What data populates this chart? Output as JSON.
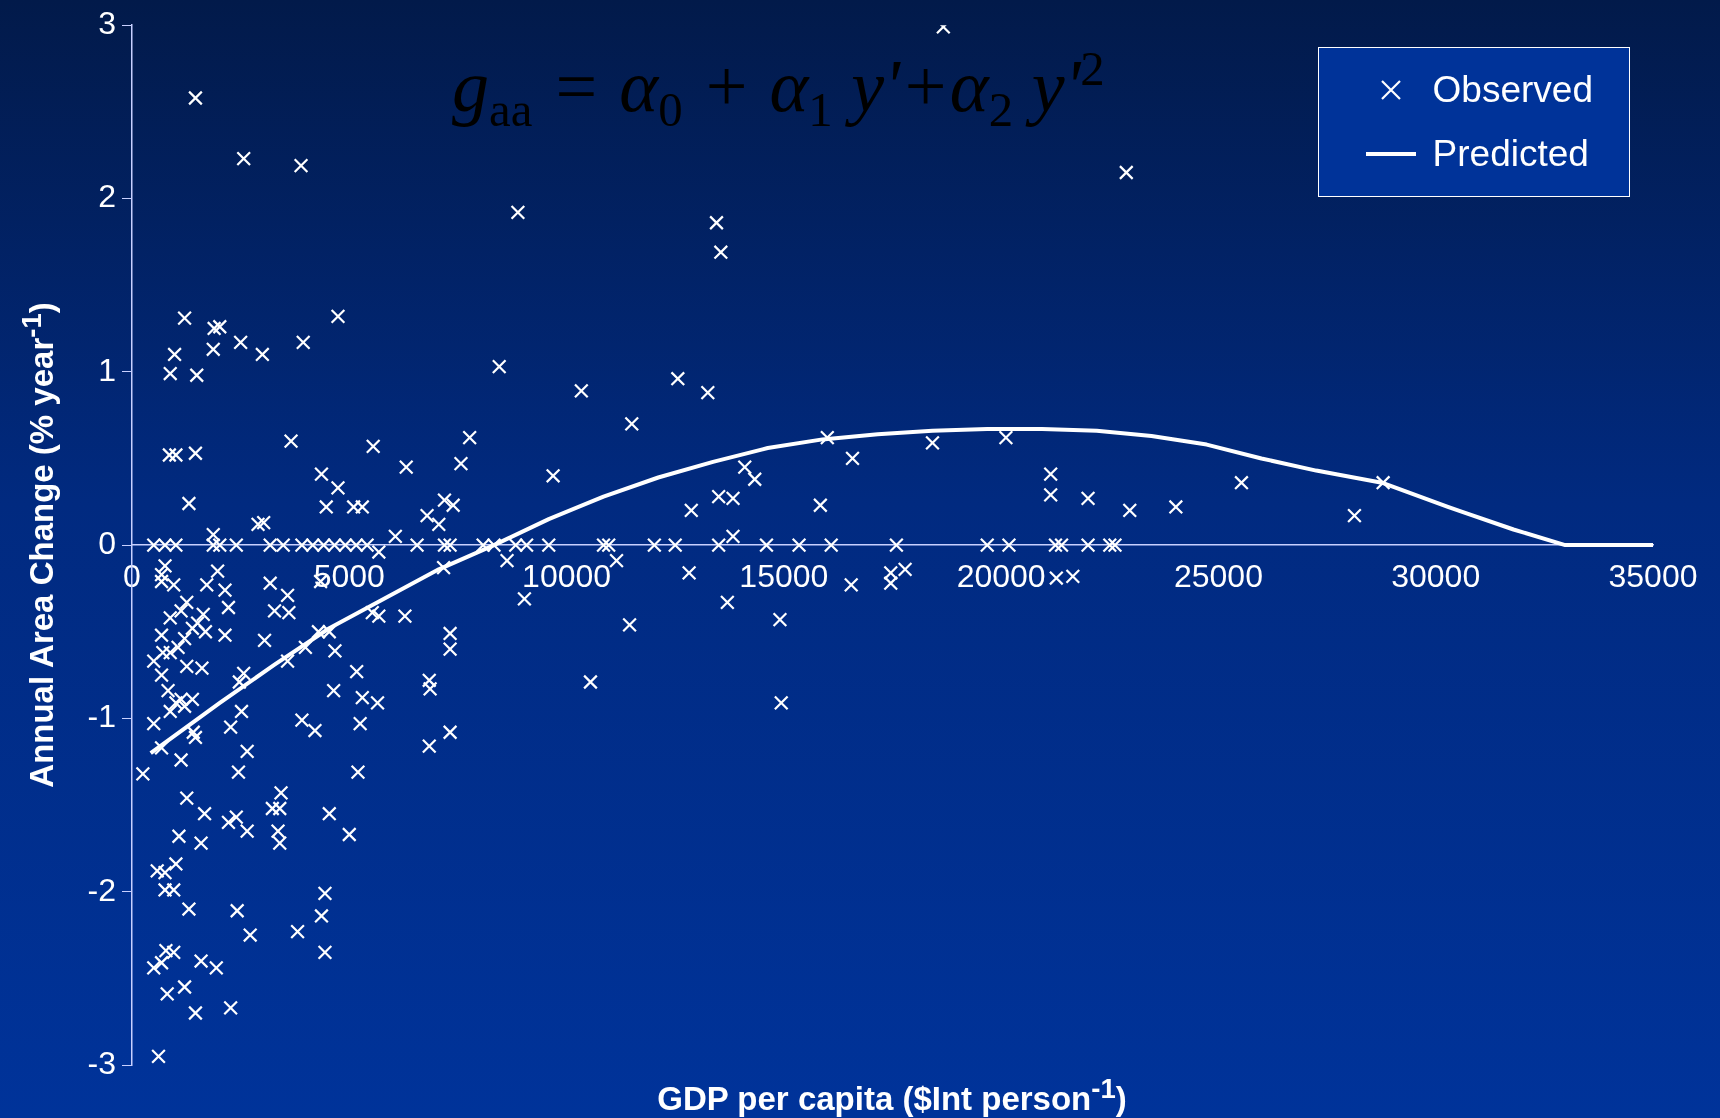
{
  "chart_data": {
    "type": "scatter",
    "xlabel": "GDP per capita ($Int person$^{-1}$)",
    "ylabel": "Annual Area Change (% year$^{-1}$)",
    "annotations": [
      "g$_{aa}$ = α$_{0}$ + α$_{1}$ y'+α$_{2}$ y'$^{2}$"
    ],
    "xlim": [
      0,
      35000
    ],
    "xticks": [
      0,
      5000,
      10000,
      15000,
      20000,
      25000,
      30000,
      35000
    ],
    "ylim": [
      -3,
      3
    ],
    "yticks": [
      -3,
      -2,
      -1,
      0,
      1,
      2,
      3
    ],
    "legend": "top right",
    "series": [
      {
        "name": "Observed",
        "type": "scatter",
        "marker": "cross",
        "color": "#ffffff",
        "x": [
          18670,
          1460,
          2570,
          3890,
          22880,
          8880,
          13450,
          13550,
          1210,
          4740,
          1890,
          2020,
          1870,
          2500,
          980,
          3000,
          3940,
          880,
          1490,
          8450,
          10340,
          12560,
          13250,
          11500,
          860,
          1010,
          1460,
          3660,
          5550,
          7770,
          16000,
          18420,
          20110,
          6310,
          4360,
          7570,
          9690,
          14100,
          14330,
          16580,
          21140,
          21140,
          22000,
          22960,
          24020,
          25530,
          28130,
          28790,
          15840,
          1310,
          2900,
          3030,
          4740,
          4470,
          5100,
          5300,
          6790,
          7190,
          7390,
          7060,
          12870,
          13500,
          13830,
          13830,
          1870,
          6060,
          500,
          760,
          1010,
          1870,
          2020,
          2400,
          3180,
          3480,
          3910,
          4160,
          4410,
          4660,
          4910,
          5160,
          5410,
          6560,
          7190,
          7320,
          8080,
          8330,
          8830,
          9080,
          9590,
          10850,
          10970,
          12020,
          12500,
          13500,
          14600,
          15350,
          16090,
          17590,
          19680,
          20180,
          21250,
          21390,
          22000,
          22500,
          22620,
          680,
          760,
          680,
          960,
          1720,
          1970,
          2140,
          3180,
          3580,
          3280,
          3610,
          4340,
          5680,
          8630,
          7170,
          11150,
          12820,
          13700,
          9030,
          17460,
          17460,
          17790,
          21270,
          21650,
          16550,
          14910,
          11450,
          10550,
          14940,
          680,
          880,
          1130,
          1260,
          500,
          710,
          880,
          1060,
          1210,
          1390,
          1510,
          1690,
          1640,
          2140,
          2220,
          1610,
          1260,
          680,
          830,
          1010,
          1130,
          1210,
          880,
          500,
          1390,
          1410,
          1460,
          250,
          680,
          1130,
          2470,
          3050,
          2570,
          3580,
          3990,
          4290,
          4540,
          4670,
          5170,
          5680,
          5530,
          6280,
          7320,
          7320,
          6840,
          6860,
          4640,
          5300,
          5650,
          3910,
          4210,
          2270,
          2520,
          5250,
          7320,
          6840,
          2650,
          2450,
          5200,
          1260,
          3430,
          1670,
          3400,
          3230,
          4540,
          2220,
          2400,
          1080,
          3360,
          3400,
          1590,
          5000,
          2650,
          1010,
          580,
          760,
          960,
          760,
          1310,
          2420,
          2720,
          3810,
          4440,
          4360,
          4440,
          780,
          960,
          500,
          680,
          1940,
          1590,
          1210,
          810,
          1460,
          2270,
          610
        ],
        "values": [
          2.99,
          2.58,
          2.23,
          2.19,
          2.15,
          1.92,
          1.86,
          1.69,
          1.31,
          1.32,
          1.25,
          1.26,
          1.13,
          1.17,
          1.1,
          1.1,
          1.17,
          0.99,
          0.98,
          1.03,
          0.89,
          0.96,
          0.88,
          0.7,
          0.52,
          0.52,
          0.53,
          0.6,
          0.57,
          0.62,
          0.62,
          0.59,
          0.62,
          0.45,
          0.41,
          0.47,
          0.4,
          0.45,
          0.38,
          0.5,
          0.41,
          0.29,
          0.27,
          0.2,
          0.22,
          0.36,
          0.17,
          0.36,
          0.23,
          0.24,
          0.12,
          0.13,
          0.33,
          0.22,
          0.22,
          0.22,
          0.17,
          0.26,
          0.23,
          0.12,
          0.2,
          0.28,
          0.27,
          0.05,
          0.06,
          0.05,
          0,
          0,
          0,
          0,
          0,
          0,
          0,
          0,
          0,
          0,
          0,
          0,
          0,
          0,
          0,
          0,
          0,
          0,
          0,
          0,
          0,
          0,
          0,
          0,
          0,
          0,
          0,
          0,
          0,
          0,
          0,
          0,
          0,
          0,
          0,
          0,
          0,
          0,
          0,
          -0.17,
          -0.12,
          -0.21,
          -0.23,
          -0.23,
          -0.15,
          -0.26,
          -0.22,
          -0.29,
          -0.38,
          -0.39,
          -0.21,
          -0.04,
          -0.09,
          -0.13,
          -0.09,
          -0.16,
          -0.33,
          -0.31,
          -0.16,
          -0.22,
          -0.14,
          -0.19,
          -0.18,
          -0.23,
          -0.43,
          -0.46,
          -0.79,
          -0.91,
          -0.52,
          -0.42,
          -0.38,
          -0.33,
          -0.67,
          -0.62,
          -0.62,
          -0.59,
          -0.54,
          -0.48,
          -0.45,
          -0.5,
          -0.4,
          -0.52,
          -0.36,
          -0.71,
          -0.7,
          -0.75,
          -0.84,
          -0.91,
          -0.89,
          -0.93,
          -0.96,
          -1.03,
          -0.89,
          -1.08,
          -1.11,
          -1.32,
          -1.17,
          -1.24,
          -0.79,
          -0.55,
          -0.74,
          -0.67,
          -0.59,
          -0.5,
          -0.5,
          -0.61,
          -0.73,
          -0.41,
          -0.39,
          -0.41,
          -0.51,
          -0.6,
          -0.78,
          -0.83,
          -0.84,
          -0.88,
          -0.91,
          -1.01,
          -1.07,
          -1.05,
          -0.96,
          -1.03,
          -1.08,
          -1.16,
          -1.19,
          -1.31,
          -1.31,
          -1.46,
          -1.43,
          -1.55,
          -1.52,
          -1.52,
          -1.55,
          -1.6,
          -1.57,
          -1.68,
          -1.65,
          -1.72,
          -1.72,
          -1.67,
          -1.65,
          -1.84,
          -1.88,
          -1.89,
          -1.99,
          -1.99,
          -2.1,
          -2.11,
          -2.25,
          -2.23,
          -2.01,
          -2.14,
          -2.35,
          -2.34,
          -2.35,
          -2.44,
          -2.41,
          -2.44,
          -2.4,
          -2.55,
          -2.59,
          -2.7,
          -2.67,
          -2.95
        ]
      },
      {
        "name": "Predicted",
        "type": "line",
        "marker": "none",
        "line_style": "solid",
        "color": "#ffffff",
        "x": [
          430,
          2020,
          3280,
          4540,
          5800,
          7060,
          8330,
          9590,
          10850,
          12110,
          13370,
          14630,
          15890,
          17160,
          18420,
          19680,
          20940,
          22200,
          23460,
          24730,
          25990,
          27250,
          28760,
          30280,
          31790,
          32980,
          35000
        ],
        "values": [
          -1.2,
          -0.91,
          -0.69,
          -0.48,
          -0.31,
          -0.14,
          0,
          0.15,
          0.28,
          0.39,
          0.48,
          0.56,
          0.61,
          0.64,
          0.66,
          0.67,
          0.67,
          0.66,
          0.63,
          0.58,
          0.5,
          0.43,
          0.36,
          0.22,
          0.09,
          0,
          0
        ]
      }
    ]
  }
}
